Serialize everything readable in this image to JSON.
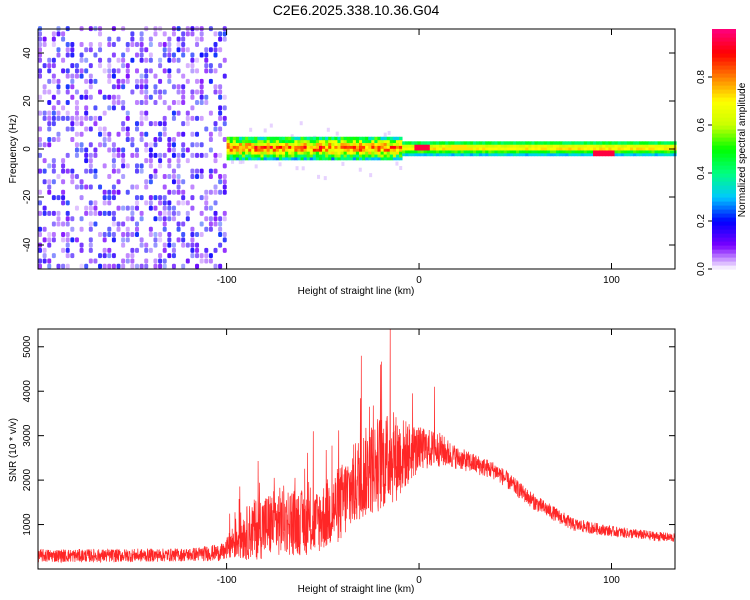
{
  "title": "C2E6.2025.338.10.36.G04",
  "chart_data": [
    {
      "type": "heatmap",
      "name": "spectrogram",
      "xlabel": "Height of straight line (km)",
      "ylabel": "Frequency (Hz)",
      "xlim": [
        -198,
        133
      ],
      "ylim": [
        -50,
        50
      ],
      "xticks": [
        -100,
        0,
        100
      ],
      "yticks": [
        -40,
        -20,
        0,
        20,
        40
      ],
      "colorbar": {
        "label": "Normalized spectral amplitude",
        "range": [
          0,
          1
        ],
        "ticks": [
          0.0,
          0.2,
          0.4,
          0.6,
          0.8
        ],
        "tick_labels": [
          "0.0",
          "0.2",
          "0.4",
          "0.6",
          "0.8"
        ],
        "colors": [
          "#ffffff",
          "#7a00ff",
          "#0000ff",
          "#00c8ff",
          "#00ff80",
          "#00ff00",
          "#c8ff00",
          "#ffff00",
          "#ff8000",
          "#ff0000",
          "#ff0080"
        ]
      },
      "regions": [
        {
          "name": "broadband noise",
          "x_range": [
            -198,
            -100
          ],
          "freq_range": [
            -50,
            50
          ],
          "amplitude": 0.15
        },
        {
          "name": "narrow carrier band",
          "x_range": [
            -100,
            133
          ],
          "freq_range": [
            -4,
            4
          ],
          "amplitude": 0.5
        },
        {
          "name": "peak near 0 km",
          "x": 0,
          "freq": 0,
          "amplitude": 0.95
        },
        {
          "name": "peak near 95 km",
          "x": 95,
          "freq": -2,
          "amplitude": 0.95
        }
      ]
    },
    {
      "type": "line",
      "name": "snr",
      "xlabel": "Height of straight line (km)",
      "ylabel": "SNR (10 * v/v)",
      "xlim": [
        -198,
        133
      ],
      "ylim": [
        0,
        5400
      ],
      "xticks": [
        -100,
        0,
        100
      ],
      "yticks": [
        1000,
        2000,
        3000,
        4000,
        5000
      ],
      "color": "#ff0000",
      "series": [
        {
          "name": "SNR envelope",
          "x": [
            -198,
            -160,
            -120,
            -101,
            -95,
            -85,
            -70,
            -55,
            -40,
            -30,
            -20,
            -12,
            0,
            10,
            20,
            40,
            60,
            80,
            100,
            120,
            133
          ],
          "mean": [
            300,
            300,
            320,
            380,
            700,
            900,
            1100,
            1000,
            1500,
            2100,
            2400,
            2500,
            2700,
            2700,
            2500,
            2200,
            1500,
            1000,
            850,
            750,
            700
          ],
          "spread": [
            150,
            150,
            150,
            200,
            500,
            700,
            800,
            700,
            900,
            1000,
            1100,
            1000,
            500,
            400,
            250,
            200,
            180,
            150,
            120,
            110,
            100
          ]
        }
      ],
      "peaks": [
        {
          "x": -15,
          "y": 5400
        },
        {
          "x": -30,
          "y": 4800
        },
        {
          "x": -20,
          "y": 4600
        },
        {
          "x": 8,
          "y": 4100
        },
        {
          "x": -55,
          "y": 3100
        }
      ]
    }
  ]
}
